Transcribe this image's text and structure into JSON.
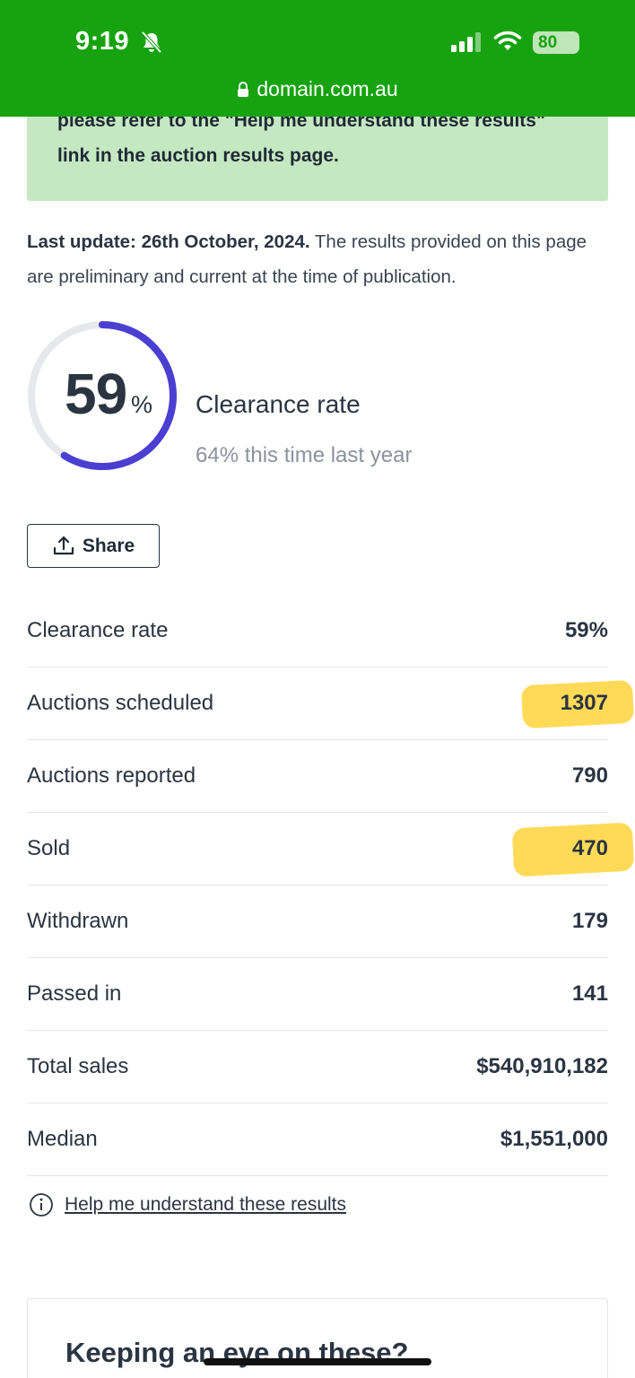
{
  "status_bar": {
    "time": "9:19",
    "battery": "80"
  },
  "browser": {
    "url": "domain.com.au"
  },
  "banner": {
    "line1": "please refer to the \"Help me understand these results\"",
    "line2": "link in the auction results page."
  },
  "update": {
    "bold": "Last update: 26th October, 2024.",
    "text": " The results provided on this page are preliminary and current at the time of publication."
  },
  "clearance": {
    "value": "59",
    "percent_sign": "%",
    "fraction": 0.59,
    "label": "Clearance rate",
    "last_year": "64% this time last year",
    "ring_color": "#4b3fd1",
    "track_color": "#e6e8ec"
  },
  "share_label": "Share",
  "stats": [
    {
      "label": "Clearance rate",
      "value": "59%"
    },
    {
      "label": "Auctions scheduled",
      "value": "1307"
    },
    {
      "label": "Auctions reported",
      "value": "790"
    },
    {
      "label": "Sold",
      "value": "470"
    },
    {
      "label": "Withdrawn",
      "value": "179"
    },
    {
      "label": "Passed in",
      "value": "141"
    },
    {
      "label": "Total sales",
      "value": "$540,910,182"
    },
    {
      "label": "Median",
      "value": "$1,551,000"
    }
  ],
  "help_link": "Help me understand these results",
  "card_title": "Keeping an eye on these?",
  "colors": {
    "status_bar": "#16a30f",
    "banner": "#c5e8c2",
    "highlight": "#ffd43a"
  },
  "icons": [
    "bell-slash-icon",
    "signal-icon",
    "wifi-icon",
    "battery-icon",
    "lock-icon",
    "share-icon",
    "info-icon"
  ]
}
